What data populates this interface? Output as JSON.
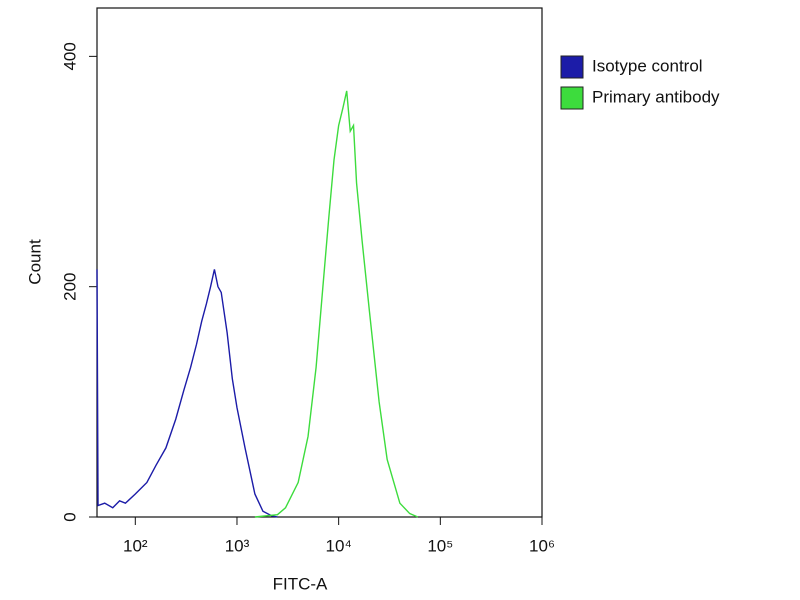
{
  "chart_data": {
    "type": "line",
    "x_label": "FITC-A",
    "y_label": "Count",
    "xscale": "log",
    "xlim": [
      42,
      1000000
    ],
    "ylim": [
      0,
      442
    ],
    "xticks": [
      {
        "value": 100,
        "label": "10²"
      },
      {
        "value": 1000,
        "label": "10³"
      },
      {
        "value": 10000,
        "label": "10⁴"
      },
      {
        "value": 100000,
        "label": "10⁵"
      },
      {
        "value": 1000000,
        "label": "10⁶"
      }
    ],
    "yticks": [
      0,
      200,
      400
    ],
    "legend": "right",
    "series": [
      {
        "name": "Isotype control",
        "color": "#1c1ca8",
        "x": [
          42,
          43,
          50,
          60,
          70,
          80,
          100,
          130,
          160,
          200,
          250,
          300,
          350,
          400,
          450,
          500,
          550,
          600,
          650,
          700,
          800,
          900,
          1000,
          1200,
          1500,
          1800,
          2200,
          2500
        ],
        "values": [
          215,
          10,
          12,
          8,
          14,
          12,
          20,
          30,
          45,
          60,
          85,
          110,
          130,
          150,
          170,
          185,
          200,
          215,
          200,
          195,
          160,
          120,
          95,
          60,
          20,
          5,
          1,
          0
        ]
      },
      {
        "name": "Primary antibody",
        "color": "#3ddc3d",
        "x": [
          1500,
          2500,
          3000,
          4000,
          5000,
          6000,
          7000,
          8000,
          9000,
          10000,
          11000,
          12000,
          13000,
          14000,
          15000,
          17000,
          20000,
          25000,
          30000,
          40000,
          50000,
          60000
        ],
        "values": [
          0,
          2,
          8,
          30,
          70,
          130,
          200,
          260,
          310,
          340,
          355,
          370,
          335,
          340,
          290,
          240,
          180,
          100,
          50,
          12,
          3,
          0
        ]
      }
    ]
  }
}
